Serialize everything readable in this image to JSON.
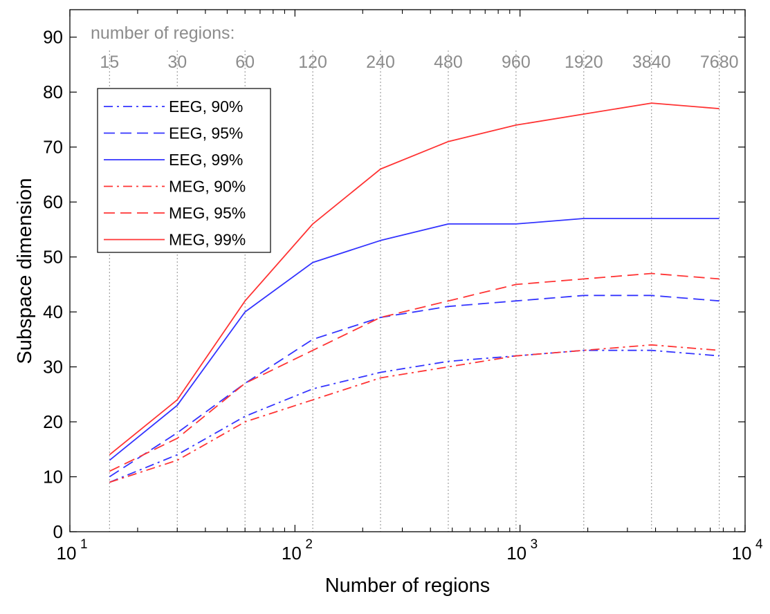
{
  "chart_data": {
    "type": "line",
    "xscale": "log",
    "xlim": [
      10,
      10000
    ],
    "ylim": [
      0,
      95
    ],
    "xlabel": "Number of regions",
    "ylabel": "Subspace dimension",
    "x_ticks": [
      {
        "value": 10,
        "base": "10",
        "exp": "1"
      },
      {
        "value": 100,
        "base": "10",
        "exp": "2"
      },
      {
        "value": 1000,
        "base": "10",
        "exp": "3"
      },
      {
        "value": 10000,
        "base": "10",
        "exp": "4"
      }
    ],
    "y_ticks": [
      0,
      10,
      20,
      30,
      40,
      50,
      60,
      70,
      80,
      90
    ],
    "top_axis": {
      "title": "number of regions:",
      "ticks": [
        "15",
        "30",
        "60",
        "120",
        "240",
        "480",
        "960",
        "1920",
        "3840",
        "7680"
      ]
    },
    "x": [
      15,
      30,
      60,
      120,
      240,
      480,
      960,
      1920,
      3840,
      7680
    ],
    "series": [
      {
        "name": "EEG, 90%",
        "color": "#3333ff",
        "style": "dashdot",
        "values": [
          9,
          14,
          21,
          26,
          29,
          31,
          32,
          33,
          33,
          32
        ]
      },
      {
        "name": "EEG, 95%",
        "color": "#3333ff",
        "style": "dashed",
        "values": [
          10,
          18,
          27,
          35,
          39,
          41,
          42,
          43,
          43,
          42
        ]
      },
      {
        "name": "EEG, 99%",
        "color": "#3333ff",
        "style": "solid",
        "values": [
          13,
          23,
          40,
          49,
          53,
          56,
          56,
          57,
          57,
          57
        ]
      },
      {
        "name": "MEG, 90%",
        "color": "#ff3333",
        "style": "dashdot",
        "values": [
          9,
          13,
          20,
          24,
          28,
          30,
          32,
          33,
          34,
          33
        ]
      },
      {
        "name": "MEG, 95%",
        "color": "#ff3333",
        "style": "dashed",
        "values": [
          11,
          17,
          27,
          33,
          39,
          42,
          45,
          46,
          47,
          46
        ]
      },
      {
        "name": "MEG, 99%",
        "color": "#ff3333",
        "style": "solid",
        "values": [
          14,
          24,
          42,
          56,
          66,
          71,
          74,
          76,
          78,
          77
        ]
      }
    ],
    "legend_position": "top-left",
    "vertical_guides": "dotted gray lines at each region count"
  }
}
